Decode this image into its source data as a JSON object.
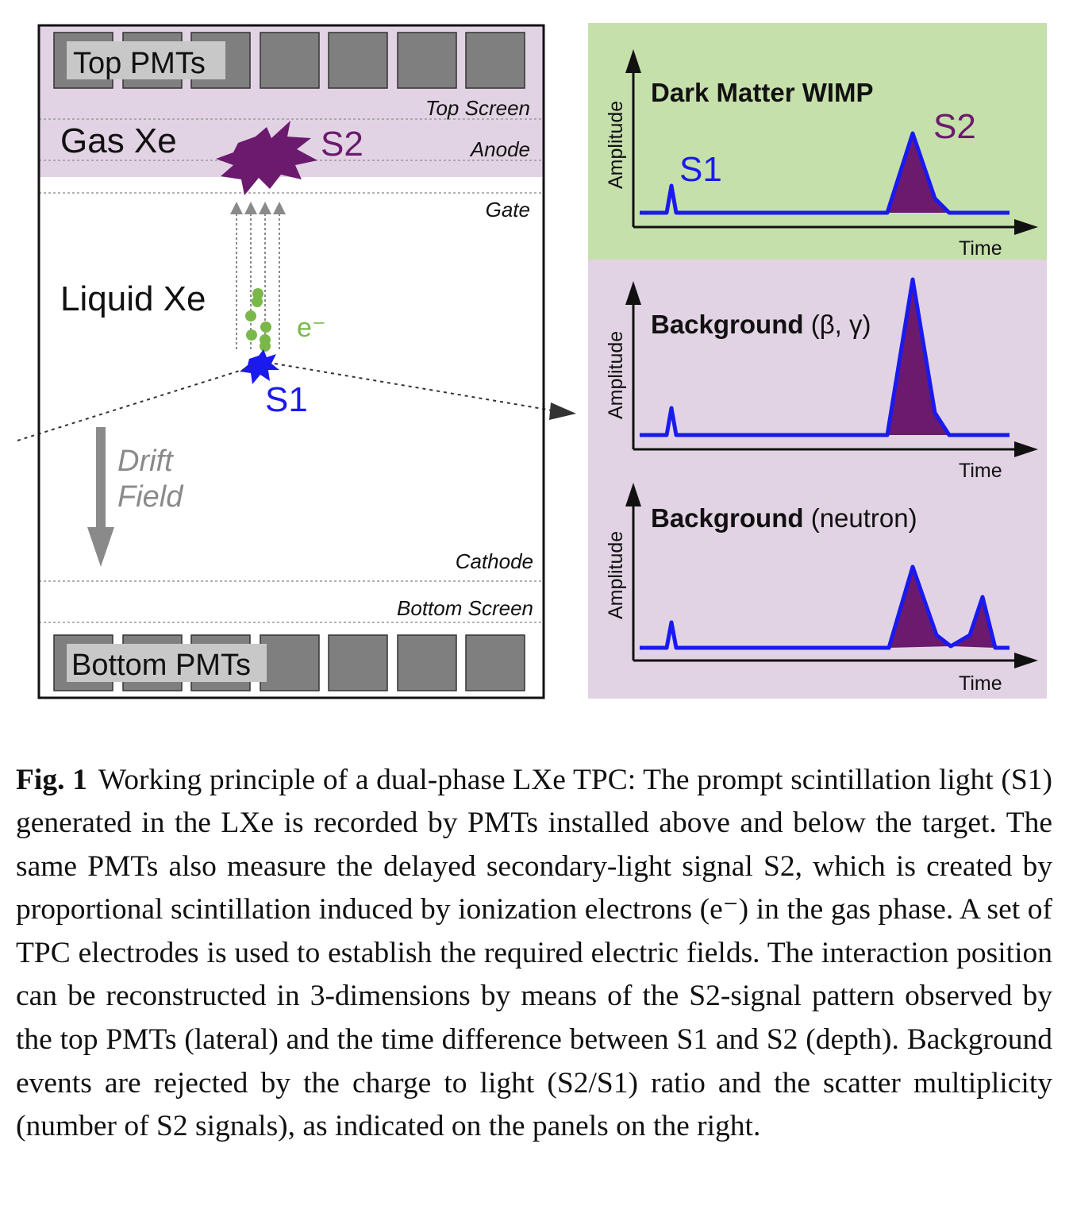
{
  "tpc": {
    "top_pmts_label": "Top PMTs",
    "bottom_pmts_label": "Bottom PMTs",
    "gas_label": "Gas Xe",
    "liquid_label": "Liquid Xe",
    "s1_label": "S1",
    "s2_label": "S2",
    "electron_label": "e⁻",
    "drift_label_line1": "Drift",
    "drift_label_line2": "Field",
    "electrodes": {
      "top_screen": "Top Screen",
      "anode": "Anode",
      "gate": "Gate",
      "cathode": "Cathode",
      "bottom_screen": "Bottom Screen"
    }
  },
  "panels": [
    {
      "title_bold": "Dark Matter WIMP",
      "title_rest": "",
      "s1_label": "S1",
      "s2_label": "S2",
      "ylabel": "Amplitude",
      "xlabel": "Time"
    },
    {
      "title_bold": "Background",
      "title_rest": " (β, γ)",
      "ylabel": "Amplitude",
      "xlabel": "Time"
    },
    {
      "title_bold": "Background",
      "title_rest": " (neutron)",
      "ylabel": "Amplitude",
      "xlabel": "Time"
    }
  ],
  "colors": {
    "gas_region": "#e2d3e4",
    "wimp_panel": "#c6e0ab",
    "background_panel": "#e2d3e4",
    "pmt": "#7f7f7f",
    "s1": "#1a1aee",
    "s2": "#6b1a6e",
    "electron": "#7ab84a",
    "drift": "#8a8a8a"
  },
  "caption": {
    "label": "Fig. 1",
    "text": "Working principle of a dual-phase LXe TPC: The prompt scin­tillation light (S1) generated in the LXe is recorded by PMTs installed above and below the target. The same PMTs also measure the delayed secondary-light signal S2, which is created by proportional scintilla­tion induced by ionization electrons (e⁻) in the gas phase. A set of TPC electrodes is used to establish the required electric fields. The in­teraction position can be reconstructed in 3-dimensions by means of the S2-signal pattern observed by the top PMTs (lateral) and the time difference between S1 and S2 (depth). Background events are rejected by the charge to light (S2/S1) ratio and the scatter multiplicity (number of S2 signals), as indicated on the panels on the right."
  }
}
